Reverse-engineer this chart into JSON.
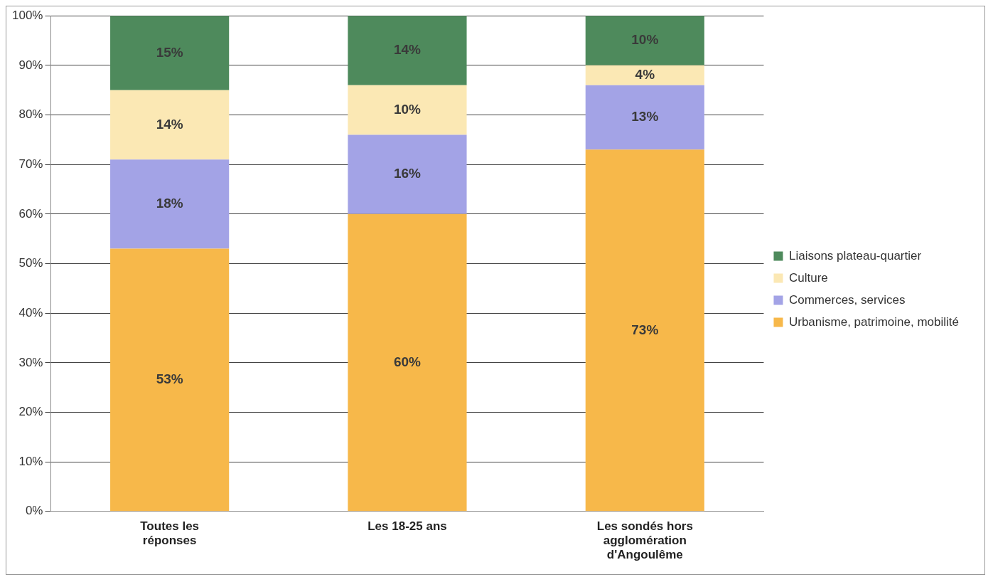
{
  "chart_data": {
    "type": "bar",
    "stacked": true,
    "categories": [
      "Toutes les réponses",
      "Les 18-25 ans",
      "Les sondés hors agglomération d'Angoulême"
    ],
    "series": [
      {
        "name": "Urbanisme, patrimoine, mobilité",
        "color": "#f7b84a",
        "values": [
          53,
          60,
          73
        ],
        "value_labels": [
          "53%",
          "60%",
          "73%"
        ]
      },
      {
        "name": "Commerces, services",
        "color": "#a3a3e6",
        "values": [
          18,
          16,
          13
        ],
        "value_labels": [
          "18%",
          "16%",
          "13%"
        ]
      },
      {
        "name": "Culture",
        "color": "#fbe8b4",
        "values": [
          14,
          10,
          4
        ],
        "value_labels": [
          "14%",
          "10%",
          "4%"
        ]
      },
      {
        "name": "Liaisons plateau-quartier",
        "color": "#4e8a5c",
        "values": [
          15,
          14,
          10
        ],
        "value_labels": [
          "15%",
          "14%",
          "10%"
        ]
      }
    ],
    "ylim": [
      0,
      100
    ],
    "yticks": [
      {
        "value": 0,
        "label": "0%"
      },
      {
        "value": 10,
        "label": "10%"
      },
      {
        "value": 20,
        "label": "20%"
      },
      {
        "value": 30,
        "label": "30%"
      },
      {
        "value": 40,
        "label": "40%"
      },
      {
        "value": 50,
        "label": "50%"
      },
      {
        "value": 60,
        "label": "60%"
      },
      {
        "value": 70,
        "label": "70%"
      },
      {
        "value": 80,
        "label": "80%"
      },
      {
        "value": 90,
        "label": "90%"
      },
      {
        "value": 100,
        "label": "100%"
      }
    ],
    "grid": "y",
    "legend": "right"
  }
}
